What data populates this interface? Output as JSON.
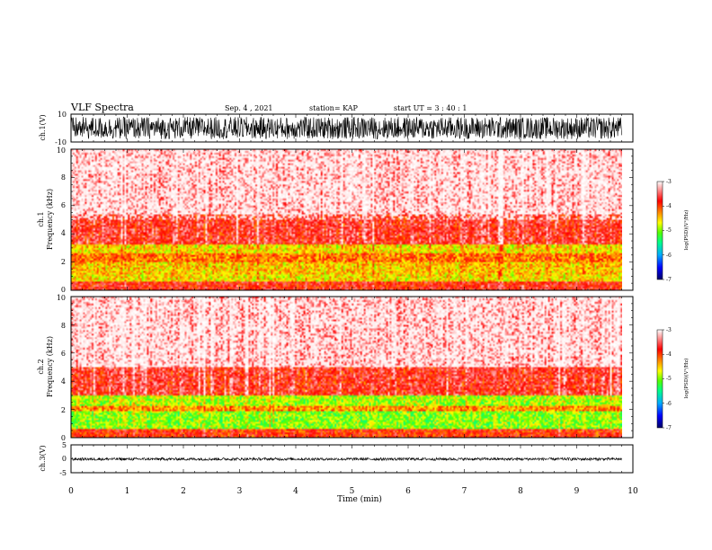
{
  "header": {
    "title": "VLF Spectra",
    "date": "Sep. 4 , 2021",
    "station": "station= KAP",
    "start": "start UT = 3 : 40 : 1"
  },
  "chart_data": [
    {
      "type": "line",
      "name": "ch1-waveform",
      "ylabel": "ch.1(V)",
      "ylim": [
        -10,
        10
      ],
      "ytick_labels": [
        "10",
        "-10"
      ],
      "xlim": [
        0,
        10
      ],
      "data_end_min": 9.8,
      "envelope": "dense oscillation approximately between -8 and +8 V"
    },
    {
      "type": "heatmap",
      "name": "ch1-spectrogram",
      "ylabel_line1": "ch.1",
      "ylabel_line2": "Frequency (kHz)",
      "ylim": [
        0,
        10
      ],
      "ytick_labels": [
        "0",
        "2",
        "4",
        "6",
        "8",
        "10"
      ],
      "xlim": [
        0,
        10
      ],
      "data_end_min": 9.8,
      "colorbar": {
        "label": "log(PSD)(V²/Hz)",
        "range": [
          -7,
          -3
        ],
        "tick_labels": [
          "-3",
          "-4",
          "-5",
          "-6",
          "-7"
        ]
      },
      "bands": [
        {
          "from_khz": 0.0,
          "to_khz": 0.6,
          "level": -3.8
        },
        {
          "from_khz": 0.6,
          "to_khz": 1.1,
          "level": -4.6
        },
        {
          "from_khz": 1.1,
          "to_khz": 2.0,
          "level": -4.5
        },
        {
          "from_khz": 2.0,
          "to_khz": 2.6,
          "level": -4.2
        },
        {
          "from_khz": 2.6,
          "to_khz": 3.2,
          "level": -4.6
        },
        {
          "from_khz": 3.2,
          "to_khz": 5.4,
          "level": -3.7
        },
        {
          "from_khz": 5.4,
          "to_khz": 10.0,
          "level": -3.2
        }
      ]
    },
    {
      "type": "heatmap",
      "name": "ch2-spectrogram",
      "ylabel_line1": "ch.2",
      "ylabel_line2": "Frequency (kHz)",
      "ylim": [
        0,
        10
      ],
      "ytick_labels": [
        "0",
        "2",
        "4",
        "6",
        "8",
        "10"
      ],
      "xlim": [
        0,
        10
      ],
      "data_end_min": 9.8,
      "colorbar": {
        "label": "log(PSD)(V²/Hz)",
        "range": [
          -7,
          -3
        ],
        "tick_labels": [
          "-3",
          "-4",
          "-5",
          "-6",
          "-7"
        ]
      },
      "bands": [
        {
          "from_khz": 0.0,
          "to_khz": 0.6,
          "level": -3.9
        },
        {
          "from_khz": 0.6,
          "to_khz": 1.9,
          "level": -5.0
        },
        {
          "from_khz": 1.9,
          "to_khz": 2.3,
          "level": -4.3
        },
        {
          "from_khz": 2.3,
          "to_khz": 3.0,
          "level": -4.9
        },
        {
          "from_khz": 3.0,
          "to_khz": 5.0,
          "level": -3.7
        },
        {
          "from_khz": 5.0,
          "to_khz": 10.0,
          "level": -3.2
        }
      ]
    },
    {
      "type": "line",
      "name": "ch3-waveform",
      "ylabel": "ch.3(V)",
      "ylim": [
        -5,
        5
      ],
      "ytick_labels": [
        "5",
        "0",
        "-5"
      ],
      "xlim": [
        0,
        10
      ],
      "data_end_min": 9.8,
      "envelope": "narrow band approximately between -0.6 and +0.4 V"
    }
  ],
  "xaxis": {
    "label": "Time (min)",
    "tick_labels": [
      "0",
      "1",
      "2",
      "3",
      "4",
      "5",
      "6",
      "7",
      "8",
      "9",
      "10"
    ]
  },
  "colors": {
    "scale": [
      "#000066",
      "#0000ff",
      "#00aaff",
      "#00ff88",
      "#55ff00",
      "#ffff00",
      "#ff7700",
      "#ff0000",
      "#ff9999",
      "#ffffff"
    ]
  }
}
